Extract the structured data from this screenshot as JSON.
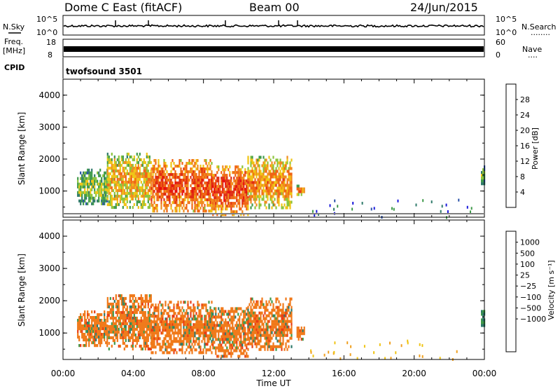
{
  "header": {
    "title": "Dome C East (fitACF)",
    "beam": "Beam 00",
    "date": "24/Jun/2015"
  },
  "noise_panel": {
    "left_label": "N.Sky",
    "right_label": "N.Search",
    "tick_top": "10^5",
    "tick_bottom": "10^0",
    "right_legend_symbol": "........"
  },
  "freq_panel": {
    "left_label_1": "Freq.",
    "left_label_2": "[MHz]",
    "left_tick_top": "18",
    "left_tick_bottom": "8",
    "right_label": "Nave",
    "right_tick_top": "60",
    "right_tick_bottom": "0",
    "right_legend_symbol": "...."
  },
  "cpid": {
    "label": "CPID",
    "program": "twofsound  3501"
  },
  "colors": {
    "power_scale": [
      "#1a1adb",
      "#2850a8",
      "#2f7a6a",
      "#3f9a4a",
      "#8cc43c",
      "#f0c414",
      "#f08c1e",
      "#f06414",
      "#e02d14",
      "#e80c0c"
    ],
    "velocity_scale": [
      "#1a1adb",
      "#2850a8",
      "#2f7a6a",
      "#3f9a4a",
      "#7ccc3c",
      "#bdbdbd",
      "#f0c414",
      "#f0a020",
      "#f07818",
      "#e83c14",
      "#e80c0c"
    ],
    "ground_scatter": "#808080"
  },
  "chart_data": [
    {
      "type": "heatmap",
      "name": "power",
      "ylabel": "Slant Range [km]",
      "xlabel": "",
      "colorbar_label": "Power [dB]",
      "colorbar_ticks": [
        "4",
        "8",
        "12",
        "16",
        "20",
        "24",
        "28"
      ],
      "colorbar_range": [
        0,
        32
      ],
      "x_range_hours": [
        0,
        24
      ],
      "y_range_km": [
        180,
        4500
      ],
      "y_ticks": [
        "1000",
        "2000",
        "3000",
        "4000"
      ],
      "scatter_regions": [
        {
          "t_start": 0.8,
          "t_end": 2.5,
          "r_min": 600,
          "r_max": 1700,
          "level": 14
        },
        {
          "t_start": 2.5,
          "t_end": 5.0,
          "r_min": 500,
          "r_max": 2200,
          "level": 20
        },
        {
          "t_start": 5.0,
          "t_end": 8.5,
          "r_min": 400,
          "r_max": 2000,
          "level": 26
        },
        {
          "t_start": 8.5,
          "t_end": 10.5,
          "r_min": 300,
          "r_max": 1800,
          "level": 27
        },
        {
          "t_start": 10.5,
          "t_end": 13.0,
          "r_min": 500,
          "r_max": 2100,
          "level": 22
        },
        {
          "t_start": 13.3,
          "t_end": 13.7,
          "r_min": 850,
          "r_max": 1200,
          "level": 22
        },
        {
          "t_start": 23.8,
          "t_end": 24.0,
          "r_min": 1200,
          "r_max": 1800,
          "level": 12
        }
      ]
    },
    {
      "type": "heatmap",
      "name": "velocity",
      "ylabel": "Slant Range [km]",
      "xlabel": "Time UT",
      "colorbar_label": "Velocity  [m s⁻¹]",
      "colorbar_ticks": [
        "1000",
        "500",
        "100",
        "25",
        "−25",
        "−100",
        "−500",
        "−1000"
      ],
      "x_range_hours": [
        0,
        24
      ],
      "x_ticks": [
        "00:00",
        "04:00",
        "08:00",
        "12:00",
        "16:00",
        "20:00",
        "00:00"
      ],
      "y_range_km": [
        180,
        4500
      ],
      "y_ticks": [
        "1000",
        "2000",
        "3000",
        "4000"
      ],
      "scatter_regions": [
        {
          "t_start": 0.8,
          "t_end": 2.5,
          "r_min": 600,
          "r_max": 1700,
          "level": 3
        },
        {
          "t_start": 2.5,
          "t_end": 5.0,
          "r_min": 500,
          "r_max": 2200,
          "level": 2
        },
        {
          "t_start": 5.0,
          "t_end": 8.5,
          "r_min": 400,
          "r_max": 2000,
          "level": 2
        },
        {
          "t_start": 8.5,
          "t_end": 10.5,
          "r_min": 300,
          "r_max": 1800,
          "level": 2
        },
        {
          "t_start": 10.5,
          "t_end": 13.0,
          "r_min": 500,
          "r_max": 2100,
          "level": 2
        },
        {
          "t_start": 13.3,
          "t_end": 13.7,
          "r_min": 850,
          "r_max": 1200,
          "level": 2
        },
        {
          "t_start": 23.8,
          "t_end": 24.0,
          "r_min": 1200,
          "r_max": 1800,
          "level": 7
        }
      ]
    }
  ]
}
